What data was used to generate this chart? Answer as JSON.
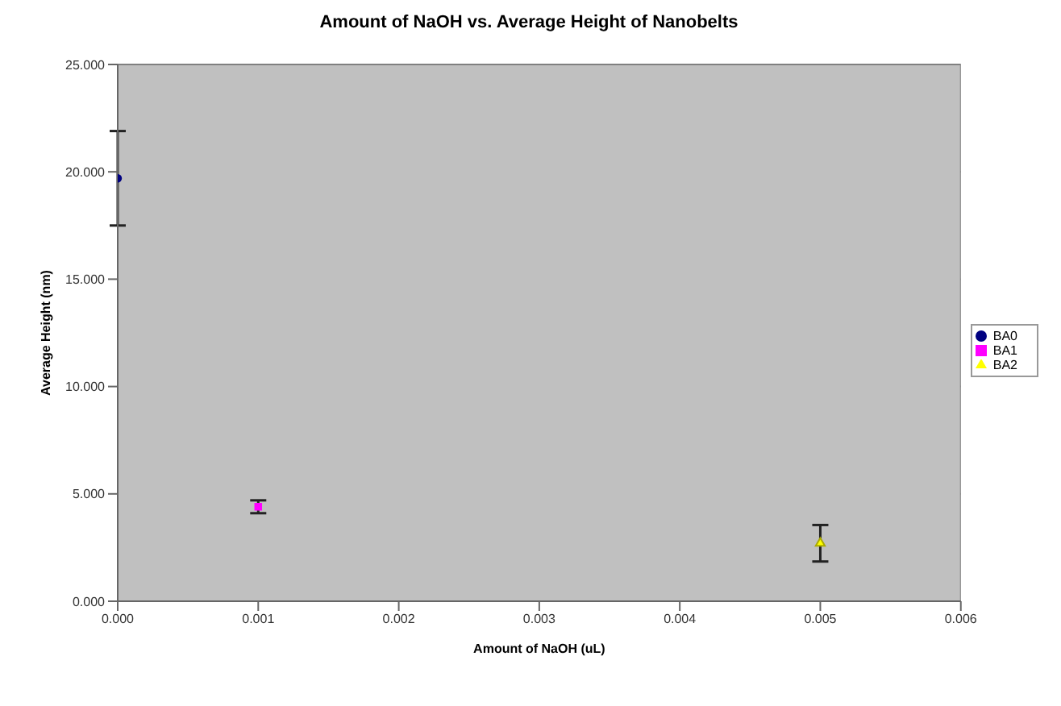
{
  "chart_data": {
    "type": "scatter",
    "title": "Amount of NaOH vs. Average Height of Nanobelts",
    "xlabel": "Amount of NaOH (uL)",
    "ylabel": "Average Height (nm)",
    "xlim": [
      0,
      0.006
    ],
    "xticks": [
      {
        "value": 0,
        "label": "0.000"
      },
      {
        "value": 0.001,
        "label": "0.001"
      },
      {
        "value": 0.002,
        "label": "0.002"
      },
      {
        "value": 0.003,
        "label": "0.003"
      },
      {
        "value": 0.004,
        "label": "0.004"
      },
      {
        "value": 0.005,
        "label": "0.005"
      },
      {
        "value": 0.006,
        "label": "0.006"
      }
    ],
    "ylim": [
      0,
      25
    ],
    "yticks": [
      {
        "value": 0,
        "label": "0.000"
      },
      {
        "value": 5,
        "label": "5.000"
      },
      {
        "value": 10,
        "label": "10.000"
      },
      {
        "value": 15,
        "label": "15.000"
      },
      {
        "value": 20,
        "label": "20.000"
      },
      {
        "value": 25,
        "label": "25.000"
      }
    ],
    "grid": "y",
    "legend": "right",
    "series": [
      {
        "name": "BA0",
        "color": "#000080",
        "marker": "circle",
        "x": [
          0
        ],
        "values": [
          19.7
        ],
        "errors": [
          2.2
        ]
      },
      {
        "name": "BA1",
        "color": "#ff00ff",
        "marker": "square",
        "x": [
          0.001
        ],
        "values": [
          4.4
        ],
        "errors": [
          0.3
        ]
      },
      {
        "name": "BA2",
        "color": "#ffff00",
        "marker": "triangle",
        "x": [
          0.005
        ],
        "values": [
          2.7
        ],
        "errors": [
          0.85
        ]
      }
    ]
  }
}
